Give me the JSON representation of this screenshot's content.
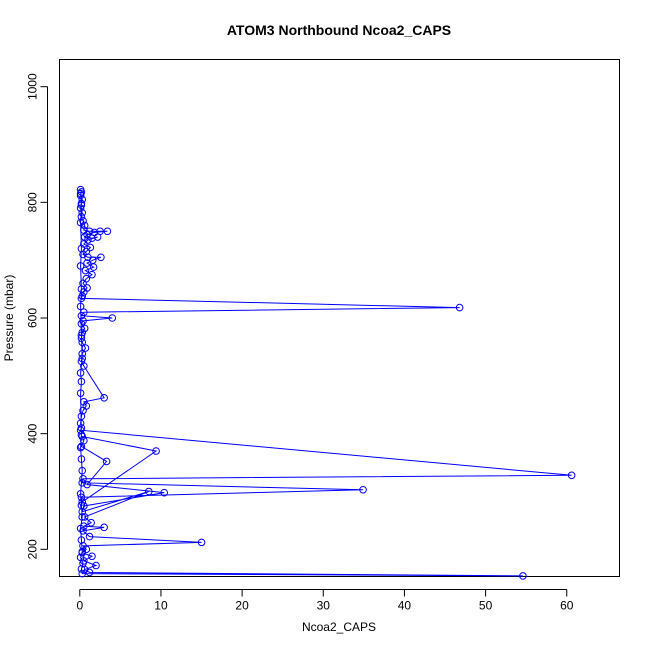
{
  "chart_data": {
    "type": "scatter",
    "title": "ATOM3 Northbound Ncoa2_CAPS",
    "xlabel": "Ncoa2_CAPS",
    "ylabel": "Pressure (mbar)",
    "xlim": [
      -2.5,
      66.5
    ],
    "ylim": [
      1047,
      153
    ],
    "y_inverted": true,
    "x_ticks": [
      0,
      10,
      20,
      30,
      40,
      50,
      60
    ],
    "y_ticks": [
      200,
      400,
      600,
      800,
      1000
    ],
    "grid": false,
    "legend": "none",
    "color": "#0000ff",
    "marker": "open-circle",
    "connected": true,
    "series": [
      {
        "values": [
          [
            0.1,
            822
          ],
          [
            0.2,
            818
          ],
          [
            0.1,
            812
          ],
          [
            0.3,
            805
          ],
          [
            0.2,
            798
          ],
          [
            0.1,
            790
          ],
          [
            0.3,
            782
          ],
          [
            0.2,
            775
          ],
          [
            0.4,
            768
          ],
          [
            0.6,
            760
          ],
          [
            0.5,
            752
          ],
          [
            1.2,
            750
          ],
          [
            2.5,
            750
          ],
          [
            3.4,
            750
          ],
          [
            1.8,
            748
          ],
          [
            0.9,
            744
          ],
          [
            0.6,
            740
          ],
          [
            1.5,
            738
          ],
          [
            2.2,
            740
          ],
          [
            1.0,
            735
          ],
          [
            0.5,
            728
          ],
          [
            1.3,
            722
          ],
          [
            0.8,
            715
          ],
          [
            0.4,
            710
          ],
          [
            1.0,
            705
          ],
          [
            2.6,
            705
          ],
          [
            1.6,
            700
          ],
          [
            0.9,
            695
          ],
          [
            1.7,
            688
          ],
          [
            0.7,
            682
          ],
          [
            1.5,
            675
          ],
          [
            0.8,
            668
          ],
          [
            0.4,
            660
          ],
          [
            0.9,
            652
          ],
          [
            0.5,
            645
          ],
          [
            0.3,
            638
          ],
          [
            0.2,
            634
          ],
          [
            46.8,
            618
          ],
          [
            0.5,
            610
          ],
          [
            0.2,
            604
          ],
          [
            4.0,
            600
          ],
          [
            0.4,
            595
          ],
          [
            0.2,
            590
          ],
          [
            0.6,
            582
          ],
          [
            0.3,
            575
          ],
          [
            0.2,
            565
          ],
          [
            0.3,
            558
          ],
          [
            0.7,
            548
          ],
          [
            0.3,
            538
          ],
          [
            0.2,
            525
          ],
          [
            0.5,
            517
          ],
          [
            3.0,
            462
          ],
          [
            0.5,
            455
          ],
          [
            0.8,
            448
          ],
          [
            0.4,
            440
          ],
          [
            0.2,
            430
          ],
          [
            0.1,
            418
          ],
          [
            0.2,
            410
          ],
          [
            0.1,
            406
          ],
          [
            60.6,
            328
          ],
          [
            0.4,
            322
          ],
          [
            0.3,
            315
          ],
          [
            34.9,
            303
          ],
          [
            0.2,
            290
          ],
          [
            0.3,
            282
          ],
          [
            9.4,
            370
          ],
          [
            0.3,
            395
          ],
          [
            0.5,
            388
          ],
          [
            0.2,
            378
          ],
          [
            3.3,
            352
          ],
          [
            0.9,
            312
          ],
          [
            10.4,
            298
          ],
          [
            0.5,
            275
          ],
          [
            0.3,
            265
          ],
          [
            8.5,
            300
          ],
          [
            0.6,
            256
          ],
          [
            1.4,
            246
          ],
          [
            0.5,
            240
          ],
          [
            3.0,
            238
          ],
          [
            0.4,
            232
          ],
          [
            1.2,
            222
          ],
          [
            15.0,
            212
          ],
          [
            0.4,
            206
          ],
          [
            0.8,
            200
          ],
          [
            0.3,
            194
          ],
          [
            1.5,
            188
          ],
          [
            0.5,
            180
          ],
          [
            2.0,
            172
          ],
          [
            0.6,
            165
          ],
          [
            1.2,
            160
          ],
          [
            54.6,
            154
          ],
          [
            0.3,
            158
          ],
          [
            0.2,
            166
          ],
          [
            0.4,
            176
          ],
          [
            0.1,
            186
          ],
          [
            0.3,
            196
          ],
          [
            0.2,
            216
          ],
          [
            0.1,
            236
          ],
          [
            0.3,
            256
          ],
          [
            0.2,
            276
          ],
          [
            0.1,
            296
          ],
          [
            0.3,
            336
          ],
          [
            0.2,
            356
          ],
          [
            0.1,
            376
          ],
          [
            0.2,
            398
          ],
          [
            0.1,
            470
          ],
          [
            0.2,
            490
          ],
          [
            0.1,
            505
          ],
          [
            0.3,
            530
          ],
          [
            0.2,
            570
          ],
          [
            0.1,
            620
          ],
          [
            0.2,
            650
          ],
          [
            0.1,
            690
          ],
          [
            0.2,
            720
          ],
          [
            0.1,
            765
          ],
          [
            0.2,
            795
          ],
          [
            0.1,
            815
          ]
        ]
      }
    ]
  }
}
